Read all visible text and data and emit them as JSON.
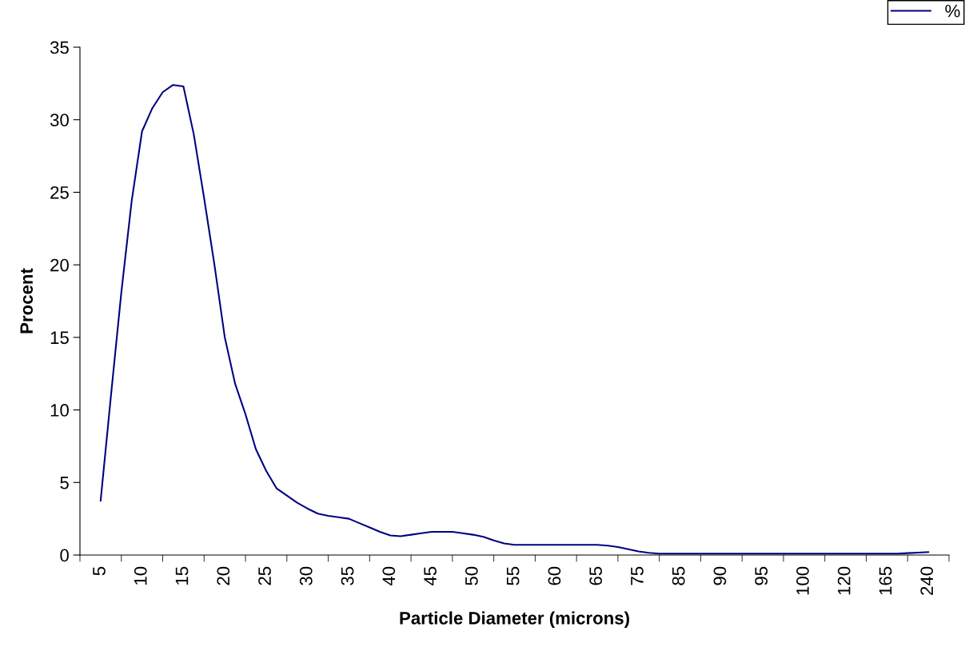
{
  "chart_data": {
    "type": "line",
    "xlabel": "Particle Diameter (microns)",
    "ylabel": "Procent",
    "categories": [
      "5",
      null,
      null,
      null,
      "10",
      null,
      null,
      null,
      "15",
      null,
      null,
      null,
      "20",
      null,
      null,
      null,
      "25",
      null,
      null,
      null,
      "30",
      null,
      null,
      null,
      "35",
      null,
      null,
      null,
      "40",
      null,
      null,
      null,
      "45",
      null,
      null,
      null,
      "50",
      null,
      null,
      null,
      "55",
      null,
      null,
      null,
      "60",
      null,
      null,
      null,
      "65",
      null,
      null,
      null,
      "75",
      null,
      null,
      null,
      "85",
      null,
      null,
      null,
      "90",
      null,
      null,
      null,
      "95",
      null,
      null,
      null,
      "100",
      null,
      null,
      null,
      "120",
      null,
      null,
      null,
      "165",
      null,
      null,
      null,
      "240"
    ],
    "series": [
      {
        "name": "%",
        "color": "#000080",
        "values": [
          3.75,
          11.0,
          18.1,
          24.4,
          29.2,
          30.8,
          31.9,
          32.4,
          32.3,
          29.0,
          24.6,
          20.0,
          15.0,
          11.8,
          9.7,
          7.3,
          5.8,
          4.6,
          4.1,
          3.6,
          3.2,
          2.85,
          2.7,
          2.6,
          2.5,
          2.2,
          1.9,
          1.6,
          1.35,
          1.3,
          1.4,
          1.5,
          1.6,
          1.6,
          1.6,
          1.5,
          1.4,
          1.25,
          1.0,
          0.8,
          0.7,
          0.7,
          0.7,
          0.7,
          0.7,
          0.7,
          0.7,
          0.7,
          0.7,
          0.65,
          0.55,
          0.4,
          0.25,
          0.15,
          0.1,
          0.1,
          0.1,
          0.1,
          0.1,
          0.1,
          0.1,
          0.1,
          0.1,
          0.1,
          0.1,
          0.1,
          0.1,
          0.1,
          0.1,
          0.1,
          0.1,
          0.1,
          0.1,
          0.1,
          0.1,
          0.1,
          0.1,
          0.1,
          0.13,
          0.17,
          0.2
        ]
      }
    ],
    "ylim": [
      0,
      35
    ],
    "yticks": [
      0,
      5,
      10,
      15,
      20,
      25,
      30,
      35
    ],
    "grid": false,
    "legend": "top right",
    "marker": "none",
    "line_style": "solid"
  }
}
